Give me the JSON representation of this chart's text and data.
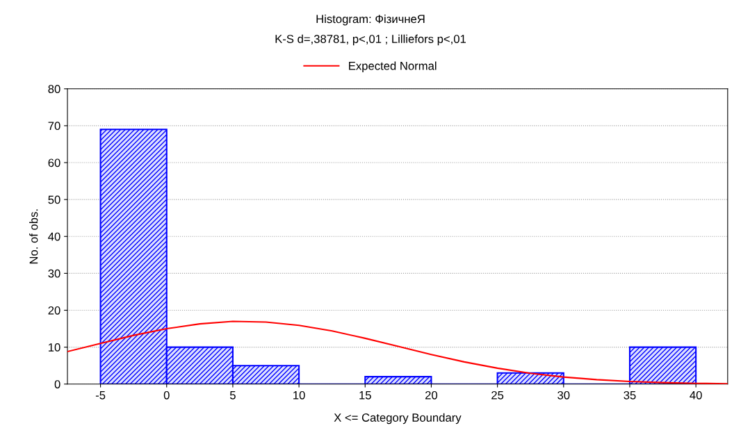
{
  "chart_data": {
    "type": "histogram",
    "title": "Histogram: ФізичнеЯ",
    "subtitle": "K-S d=,38781, p<,01 ; Lilliefors p<,01",
    "xlabel": "X <= Category Boundary",
    "ylabel": "No. of obs.",
    "bins": [
      -5,
      0,
      5,
      10,
      15,
      20,
      25,
      30,
      35,
      40
    ],
    "series": [
      {
        "color": "#0000ff",
        "values": [
          69,
          10,
          5,
          0,
          2,
          0,
          3,
          0,
          10
        ]
      },
      {
        "type": "line",
        "name": "Expected Normal",
        "color": "#ff0000",
        "x": [
          -7.5,
          -5,
          -2.5,
          0,
          2.5,
          5,
          7.5,
          10,
          12.5,
          15,
          17.5,
          20,
          22.5,
          25,
          27.5,
          30,
          32.5,
          35,
          37.5,
          40,
          42.4
        ],
        "values": [
          8.8,
          11.0,
          13.2,
          15.0,
          16.3,
          17.0,
          16.8,
          15.9,
          14.4,
          12.4,
          10.2,
          8.0,
          6.0,
          4.3,
          2.9,
          1.9,
          1.2,
          0.7,
          0.4,
          0.2,
          0.1
        ]
      }
    ],
    "xlim": [
      -7.5,
      42.4
    ],
    "xticks": [
      -5,
      0,
      5,
      10,
      15,
      20,
      25,
      30,
      35,
      40
    ],
    "ylim": [
      0,
      80
    ],
    "yticks": [
      0,
      10,
      20,
      30,
      40,
      50,
      60,
      70,
      80
    ],
    "grid": "y",
    "legend": "top"
  }
}
